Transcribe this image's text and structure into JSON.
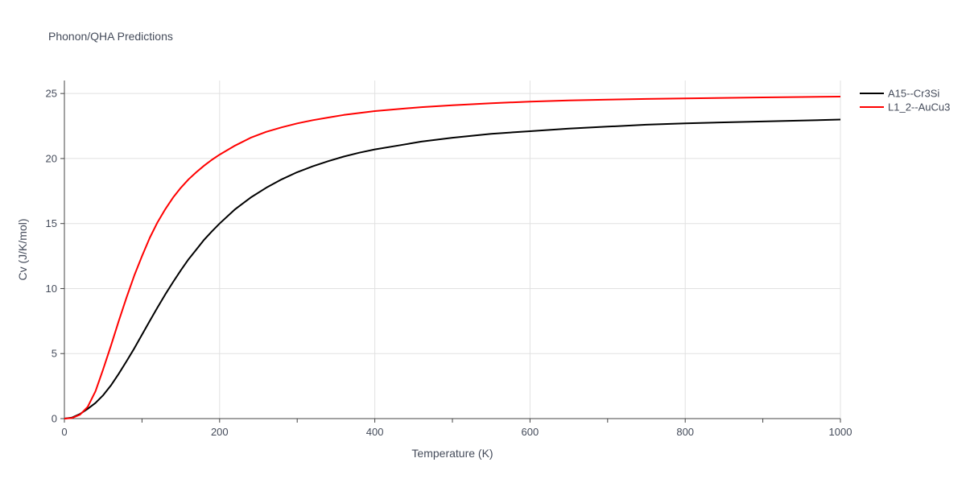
{
  "chart_data": {
    "type": "line",
    "title": "Phonon/QHA Predictions",
    "xlabel": "Temperature (K)",
    "ylabel": "Cv (J/K/mol)",
    "xlim": [
      0,
      1000
    ],
    "ylim": [
      0,
      26
    ],
    "x_ticks": [
      0,
      200,
      400,
      600,
      800,
      1000
    ],
    "y_ticks": [
      0,
      5,
      10,
      15,
      20,
      25
    ],
    "grid": true,
    "legend_position": "top-right",
    "series": [
      {
        "name": "A15--Cr3Si",
        "color": "#000000",
        "x": [
          0,
          10,
          20,
          30,
          40,
          50,
          60,
          70,
          80,
          90,
          100,
          110,
          120,
          130,
          140,
          150,
          160,
          170,
          180,
          190,
          200,
          220,
          240,
          260,
          280,
          300,
          320,
          340,
          360,
          380,
          400,
          430,
          460,
          500,
          550,
          600,
          650,
          700,
          750,
          800,
          850,
          900,
          950,
          1000
        ],
        "y": [
          0,
          0.08,
          0.35,
          0.75,
          1.2,
          1.8,
          2.55,
          3.45,
          4.4,
          5.4,
          6.45,
          7.5,
          8.55,
          9.55,
          10.5,
          11.4,
          12.25,
          13.0,
          13.75,
          14.4,
          15.0,
          16.1,
          17.0,
          17.75,
          18.4,
          18.95,
          19.4,
          19.8,
          20.15,
          20.45,
          20.7,
          21.0,
          21.3,
          21.6,
          21.9,
          22.1,
          22.3,
          22.45,
          22.6,
          22.7,
          22.78,
          22.85,
          22.92,
          23.0
        ]
      },
      {
        "name": "L1_2--AuCu3",
        "color": "#ff0000",
        "x": [
          0,
          10,
          20,
          30,
          40,
          50,
          60,
          70,
          80,
          90,
          100,
          110,
          120,
          130,
          140,
          150,
          160,
          170,
          180,
          190,
          200,
          220,
          240,
          260,
          280,
          300,
          320,
          340,
          360,
          380,
          400,
          430,
          460,
          500,
          550,
          600,
          650,
          700,
          750,
          800,
          850,
          900,
          950,
          1000
        ],
        "y": [
          0,
          0.05,
          0.3,
          0.9,
          2.1,
          3.8,
          5.6,
          7.5,
          9.3,
          11.0,
          12.5,
          13.9,
          15.1,
          16.1,
          17.0,
          17.75,
          18.4,
          18.95,
          19.45,
          19.9,
          20.3,
          21.0,
          21.6,
          22.05,
          22.4,
          22.7,
          22.95,
          23.15,
          23.35,
          23.5,
          23.65,
          23.8,
          23.95,
          24.1,
          24.25,
          24.38,
          24.47,
          24.53,
          24.58,
          24.62,
          24.66,
          24.7,
          24.73,
          24.76
        ]
      }
    ]
  }
}
